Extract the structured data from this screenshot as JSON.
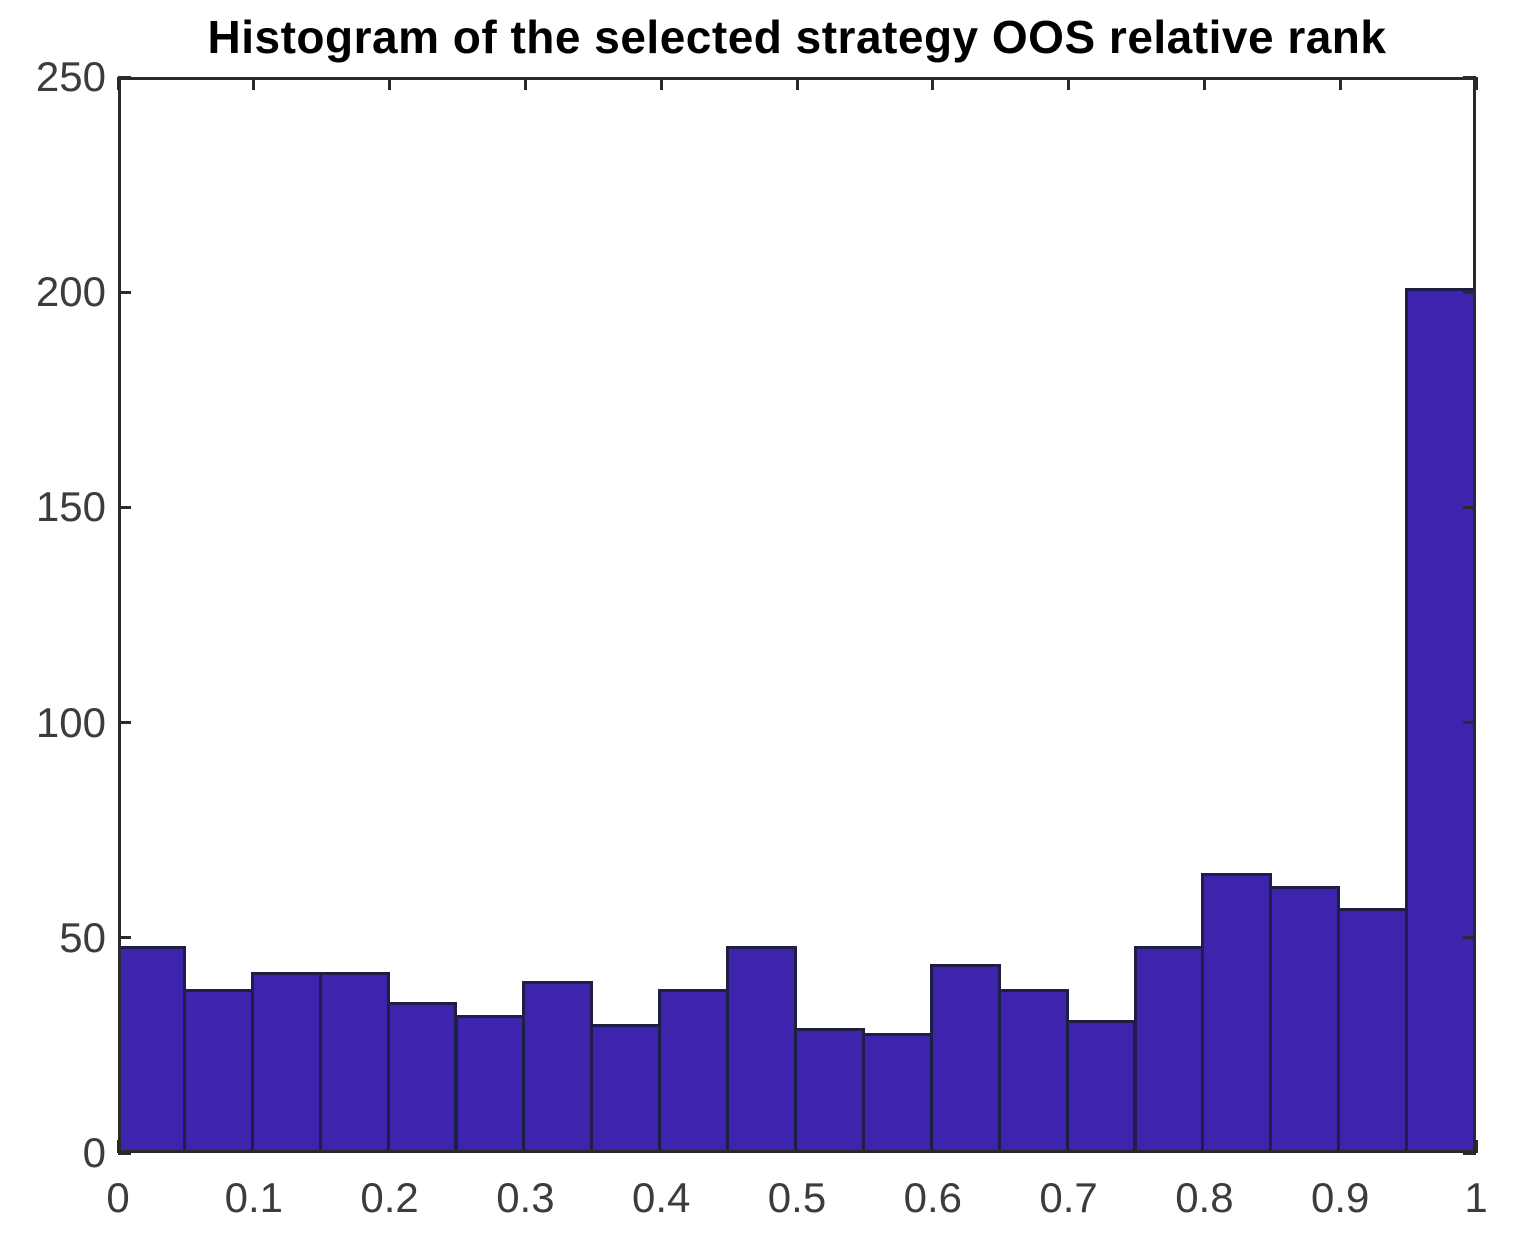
{
  "figure": {
    "background": "#ffffff"
  },
  "chart_data": {
    "type": "bar",
    "chart_kind": "histogram",
    "title": "Histogram of the selected strategy OOS relative rank",
    "xlabel": "",
    "ylabel": "",
    "xlim": [
      0,
      1
    ],
    "ylim": [
      0,
      250
    ],
    "grid": false,
    "legend": null,
    "bin_width": 0.05,
    "bin_edges": [
      0,
      0.05,
      0.1,
      0.15,
      0.2,
      0.25,
      0.3,
      0.35,
      0.4,
      0.45,
      0.5,
      0.55,
      0.6,
      0.65,
      0.7,
      0.75,
      0.8,
      0.85,
      0.9,
      0.95,
      1
    ],
    "values": [
      48,
      38,
      42,
      42,
      35,
      32,
      40,
      30,
      38,
      48,
      29,
      28,
      44,
      38,
      31,
      48,
      65,
      62,
      57,
      201
    ],
    "x_tick_values": [
      0,
      0.1,
      0.2,
      0.3,
      0.4,
      0.5,
      0.6,
      0.7,
      0.8,
      0.9,
      1
    ],
    "x_tick_labels": [
      "0",
      "0.1",
      "0.2",
      "0.3",
      "0.4",
      "0.5",
      "0.6",
      "0.7",
      "0.8",
      "0.9",
      "1"
    ],
    "y_tick_values": [
      0,
      50,
      100,
      150,
      200,
      250
    ],
    "y_tick_labels": [
      "0",
      "50",
      "100",
      "150",
      "200",
      "250"
    ],
    "colors": {
      "bar_fill": "#3E23AD",
      "bar_edge": "#1E1E46",
      "axis": "#2A2A2A",
      "tick_label": "#3C3C3C",
      "title": "#000000",
      "background": "#FFFFFF"
    }
  }
}
